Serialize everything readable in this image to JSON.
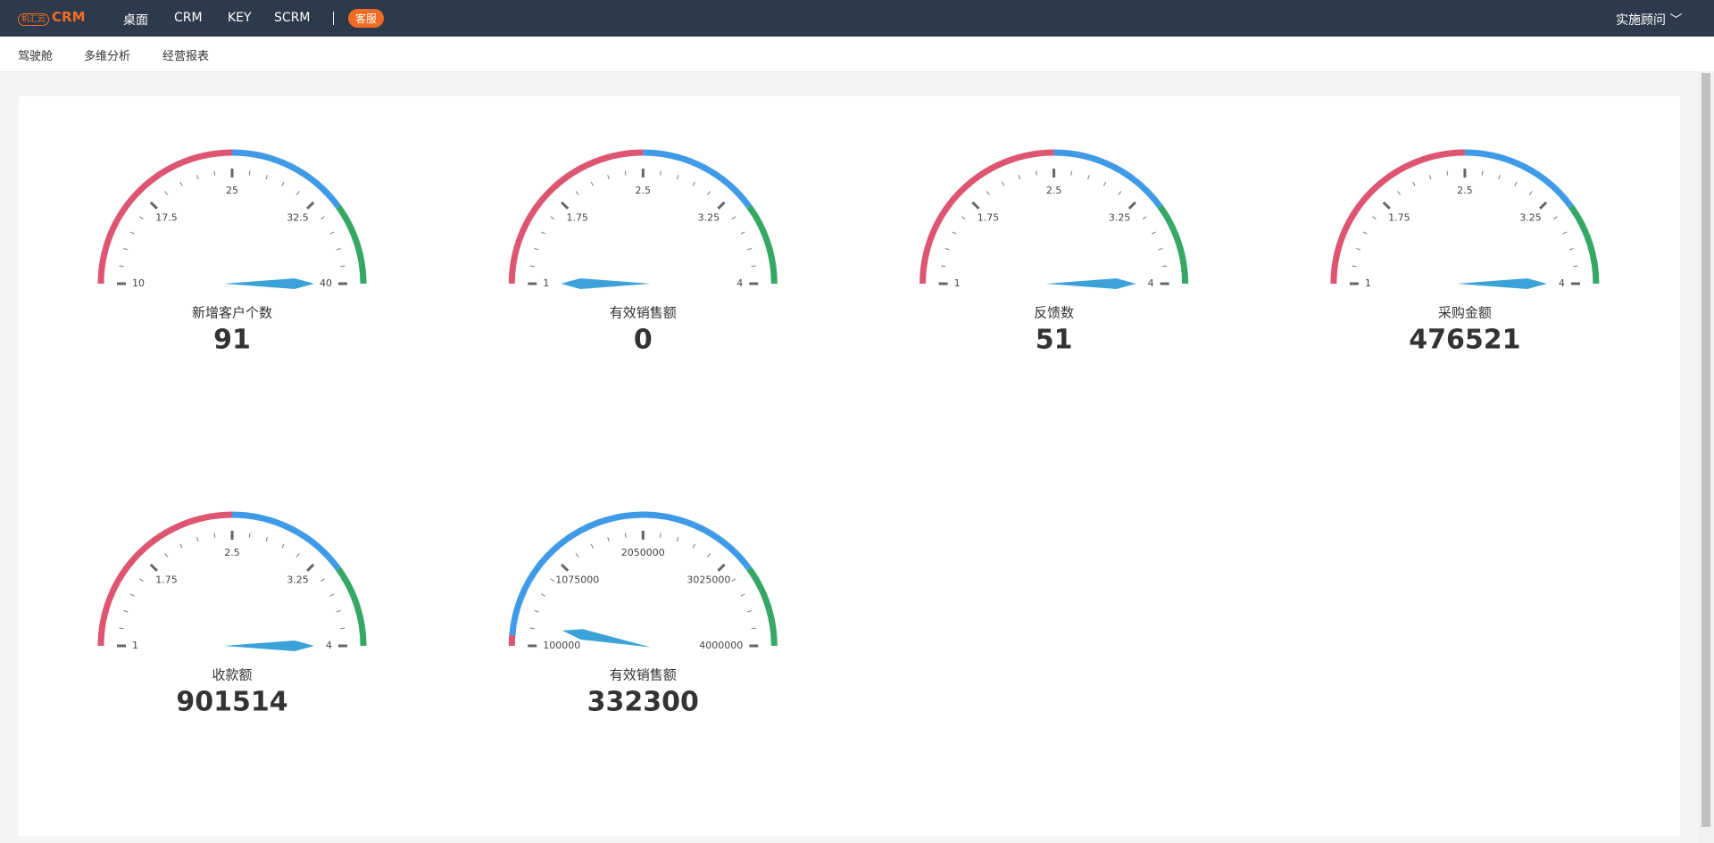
{
  "nav": {
    "logo_mark": "机汇云",
    "logo": "CRM",
    "items": [
      "桌面",
      "CRM",
      "KEY",
      "SCRM"
    ],
    "badge": "客服",
    "user": "实施顾问"
  },
  "subnav": [
    "驾驶舱",
    "多维分析",
    "经营报表"
  ],
  "chart_data": [
    {
      "type": "gauge",
      "title": "新增客户个数",
      "value": 91,
      "range": [
        10,
        40
      ],
      "ticks": [
        10,
        17.5,
        25,
        32.5,
        40
      ],
      "bands": [
        {
          "to": 25,
          "color": "#dd5570"
        },
        {
          "to": 34,
          "color": "#3f9ae8"
        },
        {
          "to": 40,
          "color": "#36a866"
        }
      ],
      "needle_color": "#3ba2d8"
    },
    {
      "type": "gauge",
      "title": "有效销售额",
      "value": 0,
      "range": [
        1,
        4
      ],
      "ticks": [
        1,
        1.75,
        2.5,
        3.25,
        4
      ],
      "bands": [
        {
          "to": 2.5,
          "color": "#dd5570"
        },
        {
          "to": 3.4,
          "color": "#3f9ae8"
        },
        {
          "to": 4,
          "color": "#36a866"
        }
      ],
      "needle_color": "#3ba2d8"
    },
    {
      "type": "gauge",
      "title": "反馈数",
      "value": 51,
      "range": [
        1,
        4
      ],
      "ticks": [
        1,
        1.75,
        2.5,
        3.25,
        4
      ],
      "bands": [
        {
          "to": 2.5,
          "color": "#dd5570"
        },
        {
          "to": 3.4,
          "color": "#3f9ae8"
        },
        {
          "to": 4,
          "color": "#36a866"
        }
      ],
      "needle_color": "#3ba2d8"
    },
    {
      "type": "gauge",
      "title": "采购金额",
      "value": 476521,
      "range": [
        1,
        4
      ],
      "ticks": [
        1,
        1.75,
        2.5,
        3.25,
        4
      ],
      "bands": [
        {
          "to": 2.5,
          "color": "#dd5570"
        },
        {
          "to": 3.4,
          "color": "#3f9ae8"
        },
        {
          "to": 4,
          "color": "#36a866"
        }
      ],
      "needle_color": "#3ba2d8"
    },
    {
      "type": "gauge",
      "title": "收款额",
      "value": 901514,
      "range": [
        1,
        4
      ],
      "ticks": [
        1,
        1.75,
        2.5,
        3.25,
        4
      ],
      "bands": [
        {
          "to": 2.5,
          "color": "#dd5570"
        },
        {
          "to": 3.4,
          "color": "#3f9ae8"
        },
        {
          "to": 4,
          "color": "#36a866"
        }
      ],
      "needle_color": "#3ba2d8"
    },
    {
      "type": "gauge",
      "title": "有效销售额",
      "value": 332300,
      "range": [
        100000,
        4000000
      ],
      "ticks": [
        100000,
        1075000,
        2050000,
        3025000,
        4000000
      ],
      "bands": [
        {
          "to": 200000,
          "color": "#dd5570"
        },
        {
          "to": 3220000,
          "color": "#3f9ae8"
        },
        {
          "to": 4000000,
          "color": "#36a866"
        }
      ],
      "needle_color": "#3ba2d8"
    }
  ]
}
